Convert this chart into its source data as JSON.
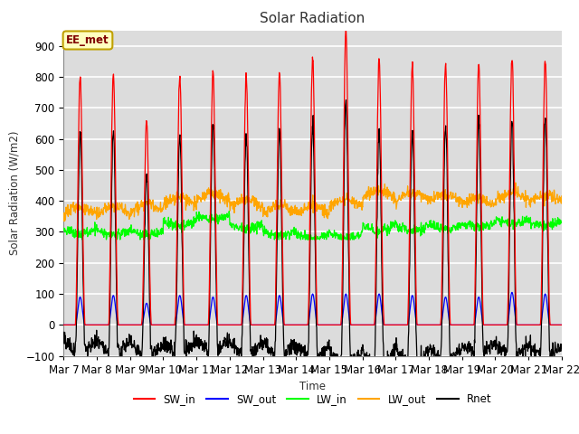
{
  "title": "Solar Radiation",
  "ylabel": "Solar Radiation (W/m2)",
  "xlabel": "Time",
  "ylim": [
    -100,
    950
  ],
  "background_color": "#dcdcdc",
  "grid_color": "white",
  "annotation_text": "EE_met",
  "annotation_bg": "#ffffc0",
  "annotation_border": "#c0a000",
  "x_tick_labels": [
    "Mar 7",
    "Mar 8",
    "Mar 9",
    "Mar 10",
    "Mar 11",
    "Mar 12",
    "Mar 13",
    "Mar 14",
    "Mar 15",
    "Mar 16",
    "Mar 17",
    "Mar 18",
    "Mar 19",
    "Mar 20",
    "Mar 21",
    "Mar 22"
  ],
  "colors": {
    "SW_in": "#ff0000",
    "SW_out": "#0000ff",
    "LW_in": "#00ff00",
    "LW_out": "#ffa500",
    "Rnet": "#000000"
  },
  "n_days": 15,
  "points_per_day": 96,
  "sw_in_peaks": [
    800,
    810,
    660,
    800,
    820,
    800,
    810,
    860,
    950,
    855,
    835,
    840,
    840,
    855,
    860
  ],
  "sw_out_peaks": [
    90,
    95,
    70,
    95,
    90,
    95,
    95,
    100,
    100,
    100,
    95,
    90,
    90,
    105,
    100
  ],
  "lw_in_mean": 330,
  "lw_out_mean": 380
}
